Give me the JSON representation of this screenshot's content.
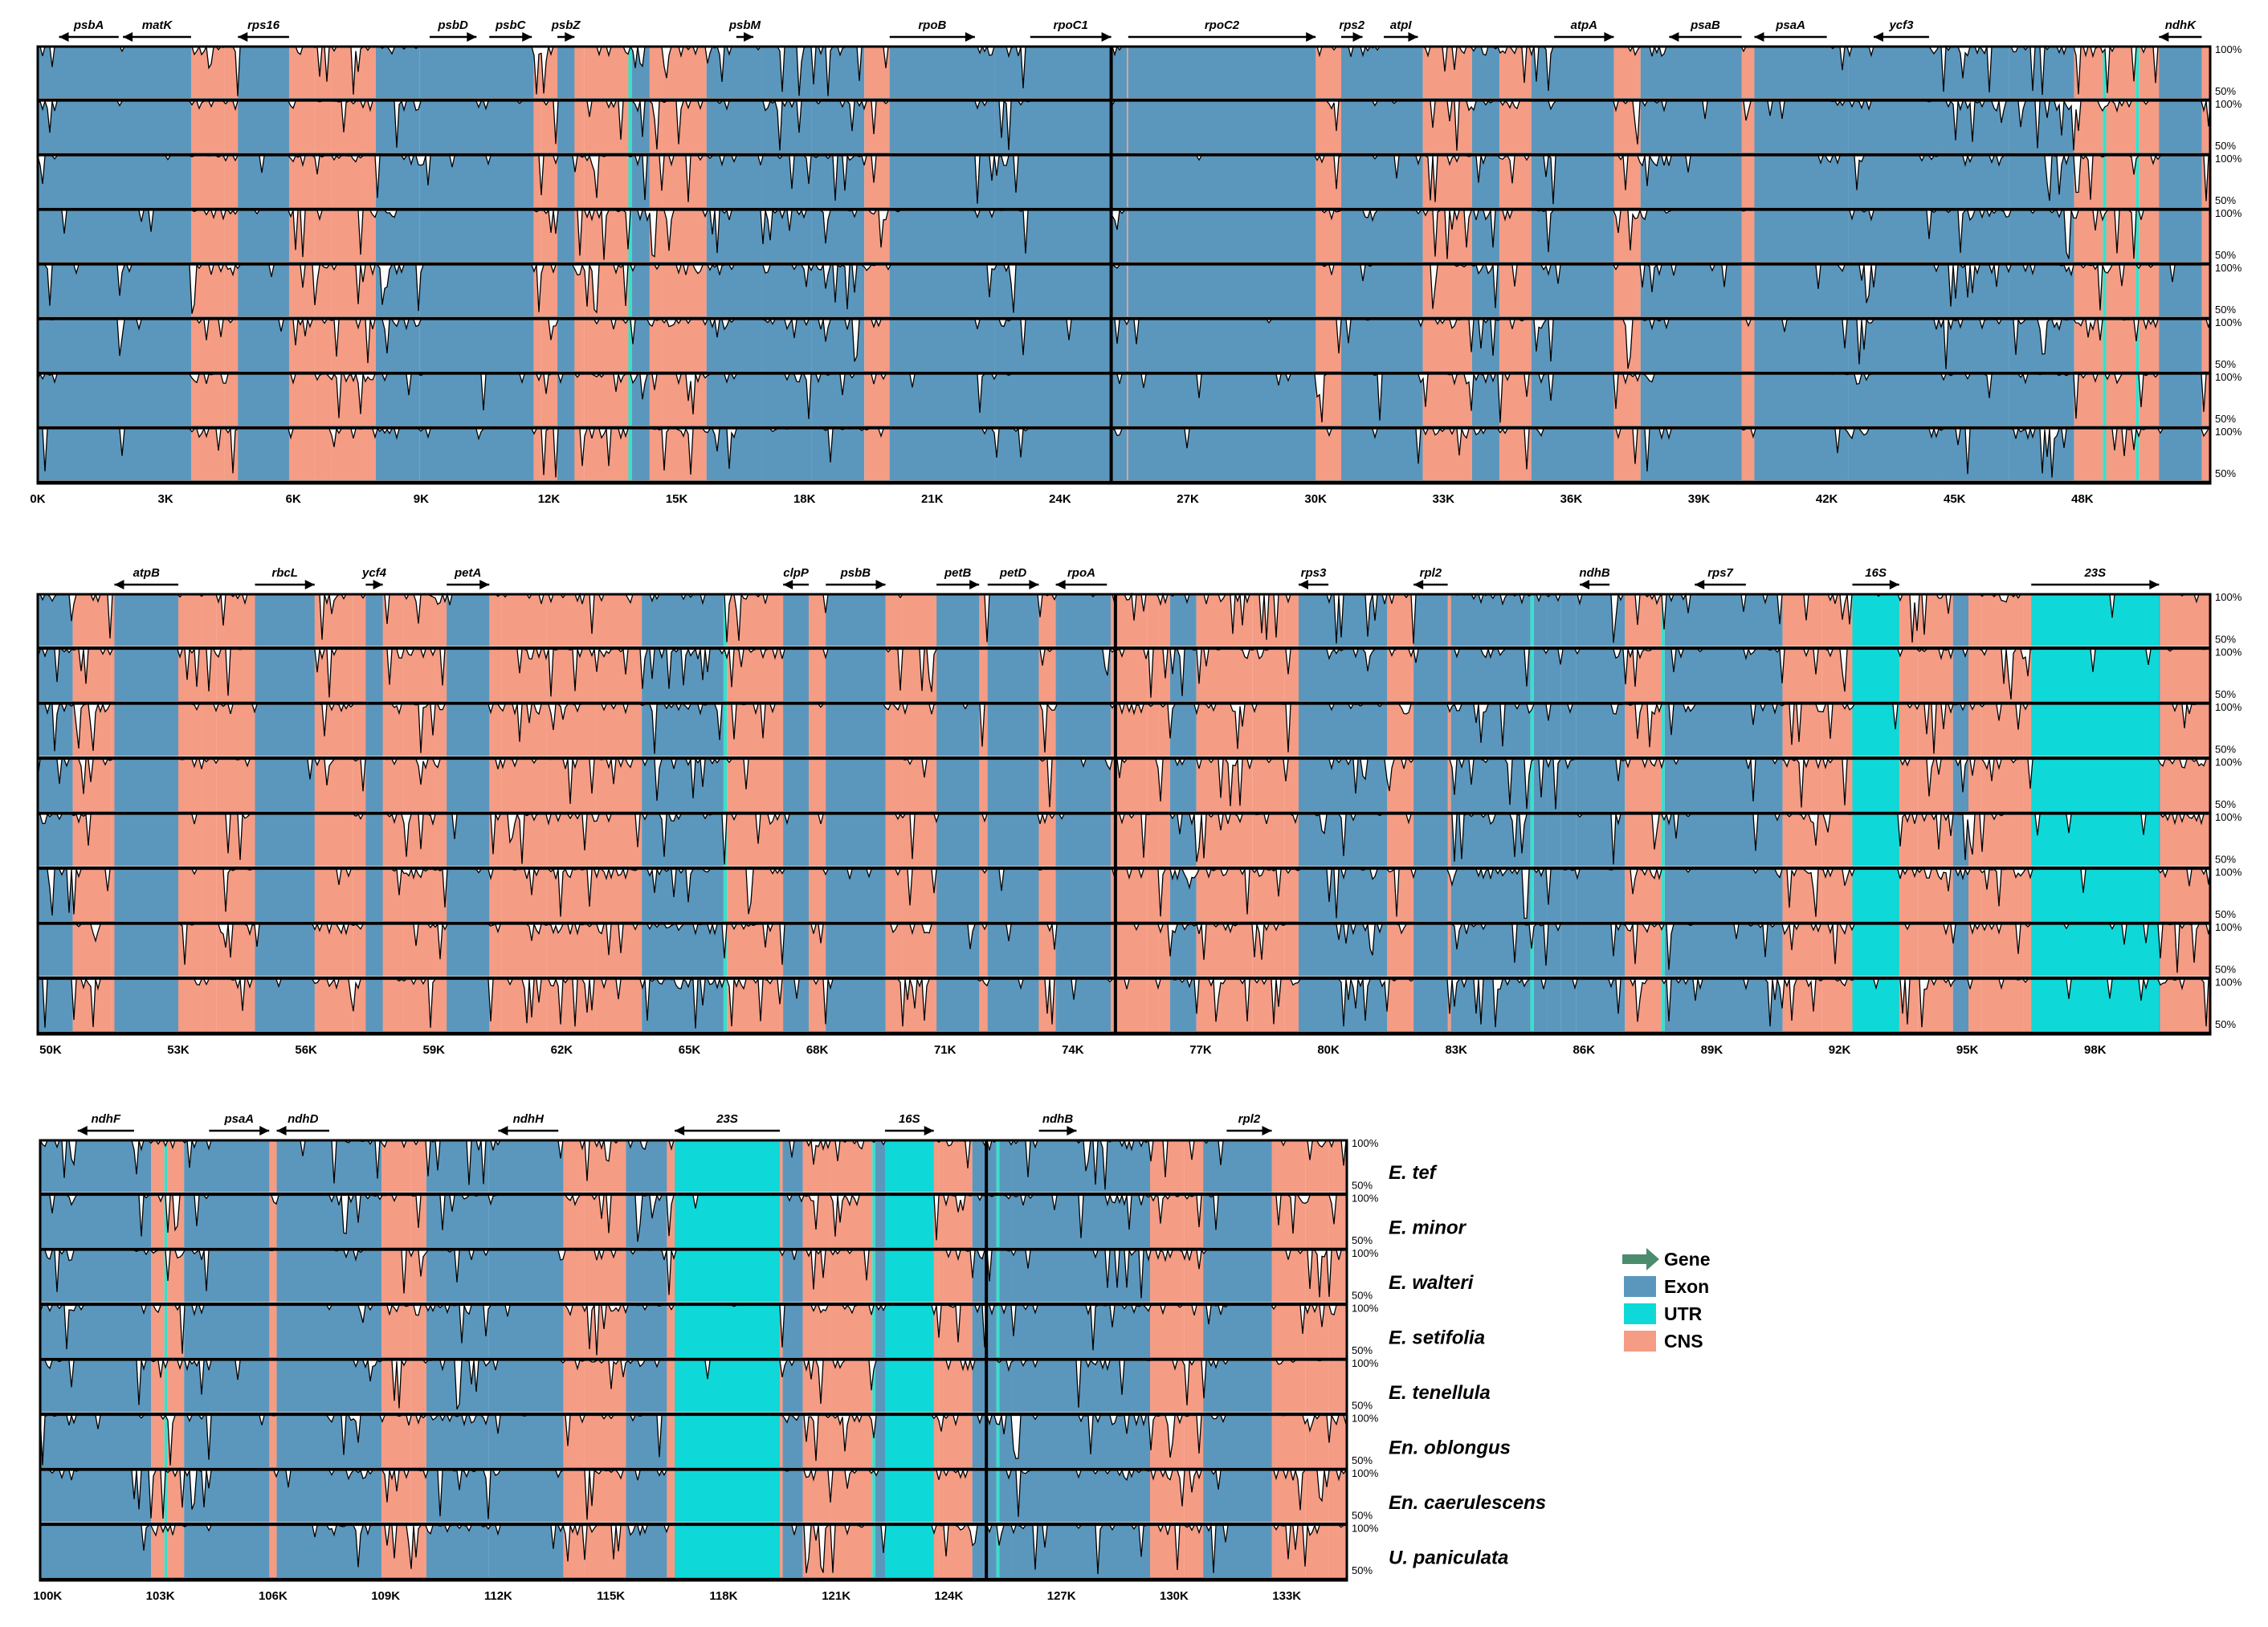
{
  "chart_data": {
    "type": "area",
    "title": "",
    "y_tick_top": "100%",
    "y_tick_mid": "50%",
    "species": [
      "E. tef",
      "E. minor",
      "E. walteri",
      "E. setifolia",
      "E. tenellula",
      "En. oblongus",
      "En. caerulescens",
      "U. paniculata"
    ],
    "legend": [
      {
        "label": "Gene",
        "color": "#4c8c6e",
        "kind": "arrow"
      },
      {
        "label": "Exon",
        "color": "#5b97bd",
        "kind": "box"
      },
      {
        "label": "UTR",
        "color": "#0fd8d8",
        "kind": "box"
      },
      {
        "label": "CNS",
        "color": "#f59c85",
        "kind": "box"
      }
    ],
    "colors": {
      "exon": "#5b97bd",
      "utr": "#0fd8d8",
      "cns": "#f59c85",
      "utr_line": "#36e0cc"
    },
    "panels": [
      {
        "range_kb": [
          0,
          51
        ],
        "ticks": [
          "0K",
          "3K",
          "6K",
          "9K",
          "12K",
          "15K",
          "18K",
          "21K",
          "24K",
          "27K",
          "30K",
          "33K",
          "36K",
          "39K",
          "42K",
          "45K",
          "48K"
        ],
        "tick_values": [
          0,
          3,
          6,
          9,
          12,
          15,
          18,
          21,
          24,
          27,
          30,
          33,
          36,
          39,
          42,
          45,
          48
        ],
        "separator_kb": 25.2,
        "genes": [
          {
            "name": "psbA",
            "start": 0.5,
            "end": 1.9,
            "dir": "left"
          },
          {
            "name": "matK",
            "start": 2.0,
            "end": 3.6,
            "dir": "left"
          },
          {
            "name": "rps16",
            "start": 4.7,
            "end": 5.9,
            "dir": "left"
          },
          {
            "name": "psbD",
            "start": 9.2,
            "end": 10.3,
            "dir": "right"
          },
          {
            "name": "psbC",
            "start": 10.6,
            "end": 11.6,
            "dir": "right"
          },
          {
            "name": "psbZ",
            "start": 12.2,
            "end": 12.6,
            "dir": "right"
          },
          {
            "name": "psbM",
            "start": 16.4,
            "end": 16.8,
            "dir": "right"
          },
          {
            "name": "rpoB",
            "start": 20.0,
            "end": 22.0,
            "dir": "right"
          },
          {
            "name": "rpoC1",
            "start": 23.3,
            "end": 25.2,
            "dir": "right"
          },
          {
            "name": "rpoC2",
            "start": 25.6,
            "end": 30.0,
            "dir": "right"
          },
          {
            "name": "rps2",
            "start": 30.6,
            "end": 31.1,
            "dir": "right"
          },
          {
            "name": "atpI",
            "start": 31.6,
            "end": 32.4,
            "dir": "right"
          },
          {
            "name": "atpA",
            "start": 35.6,
            "end": 37.0,
            "dir": "right"
          },
          {
            "name": "psaB",
            "start": 38.3,
            "end": 40.0,
            "dir": "left"
          },
          {
            "name": "psaA",
            "start": 40.3,
            "end": 42.0,
            "dir": "left"
          },
          {
            "name": "ycf3",
            "start": 43.1,
            "end": 44.4,
            "dir": "left"
          },
          {
            "name": "ndhK",
            "start": 49.8,
            "end": 50.8,
            "dir": "left"
          }
        ]
      },
      {
        "range_kb": [
          49.7,
          100.7
        ],
        "ticks": [
          "50K",
          "53K",
          "56K",
          "59K",
          "62K",
          "65K",
          "68K",
          "71K",
          "74K",
          "77K",
          "80K",
          "83K",
          "86K",
          "89K",
          "92K",
          "95K",
          "98K"
        ],
        "tick_values": [
          50,
          53,
          56,
          59,
          62,
          65,
          68,
          71,
          74,
          77,
          80,
          83,
          86,
          89,
          92,
          95,
          98
        ],
        "separator_kb": 75.0,
        "genes": [
          {
            "name": "atpB",
            "start": 51.5,
            "end": 53.0,
            "dir": "left"
          },
          {
            "name": "rbcL",
            "start": 54.8,
            "end": 56.2,
            "dir": "right"
          },
          {
            "name": "ycf4",
            "start": 57.4,
            "end": 57.8,
            "dir": "right"
          },
          {
            "name": "petA",
            "start": 59.3,
            "end": 60.3,
            "dir": "right"
          },
          {
            "name": "clpP",
            "start": 67.2,
            "end": 67.8,
            "dir": "left"
          },
          {
            "name": "psbB",
            "start": 68.2,
            "end": 69.6,
            "dir": "right"
          },
          {
            "name": "petB",
            "start": 70.8,
            "end": 71.8,
            "dir": "right"
          },
          {
            "name": "petD",
            "start": 72.0,
            "end": 73.2,
            "dir": "right"
          },
          {
            "name": "rpoA",
            "start": 73.6,
            "end": 74.8,
            "dir": "left"
          },
          {
            "name": "rps3",
            "start": 79.3,
            "end": 80.0,
            "dir": "left"
          },
          {
            "name": "rpl2",
            "start": 82.0,
            "end": 82.8,
            "dir": "left"
          },
          {
            "name": "ndhB",
            "start": 85.9,
            "end": 86.6,
            "dir": "left"
          },
          {
            "name": "rps7",
            "start": 88.6,
            "end": 89.8,
            "dir": "left"
          },
          {
            "name": "16S",
            "start": 92.3,
            "end": 93.4,
            "dir": "right"
          },
          {
            "name": "23S",
            "start": 96.5,
            "end": 99.5,
            "dir": "right"
          }
        ]
      },
      {
        "range_kb": [
          99.8,
          134.6
        ],
        "ticks": [
          "100K",
          "103K",
          "106K",
          "109K",
          "112K",
          "115K",
          "118K",
          "121K",
          "124K",
          "127K",
          "130K",
          "133K"
        ],
        "tick_values": [
          100,
          103,
          106,
          109,
          112,
          115,
          118,
          121,
          124,
          127,
          130,
          133
        ],
        "separator_kb": 125.0,
        "genes": [
          {
            "name": "ndhF",
            "start": 100.8,
            "end": 102.3,
            "dir": "left"
          },
          {
            "name": "psaA",
            "start": 104.3,
            "end": 105.9,
            "dir": "right"
          },
          {
            "name": "ndhD",
            "start": 106.1,
            "end": 107.5,
            "dir": "left"
          },
          {
            "name": "ndhH",
            "start": 112.0,
            "end": 113.6,
            "dir": "left"
          },
          {
            "name": "23S",
            "start": 116.7,
            "end": 119.5,
            "dir": "left"
          },
          {
            "name": "16S",
            "start": 122.3,
            "end": 123.6,
            "dir": "right"
          },
          {
            "name": "ndhB",
            "start": 126.4,
            "end": 127.4,
            "dir": "right"
          },
          {
            "name": "rpl2",
            "start": 131.4,
            "end": 132.6,
            "dir": "right"
          }
        ]
      }
    ]
  }
}
